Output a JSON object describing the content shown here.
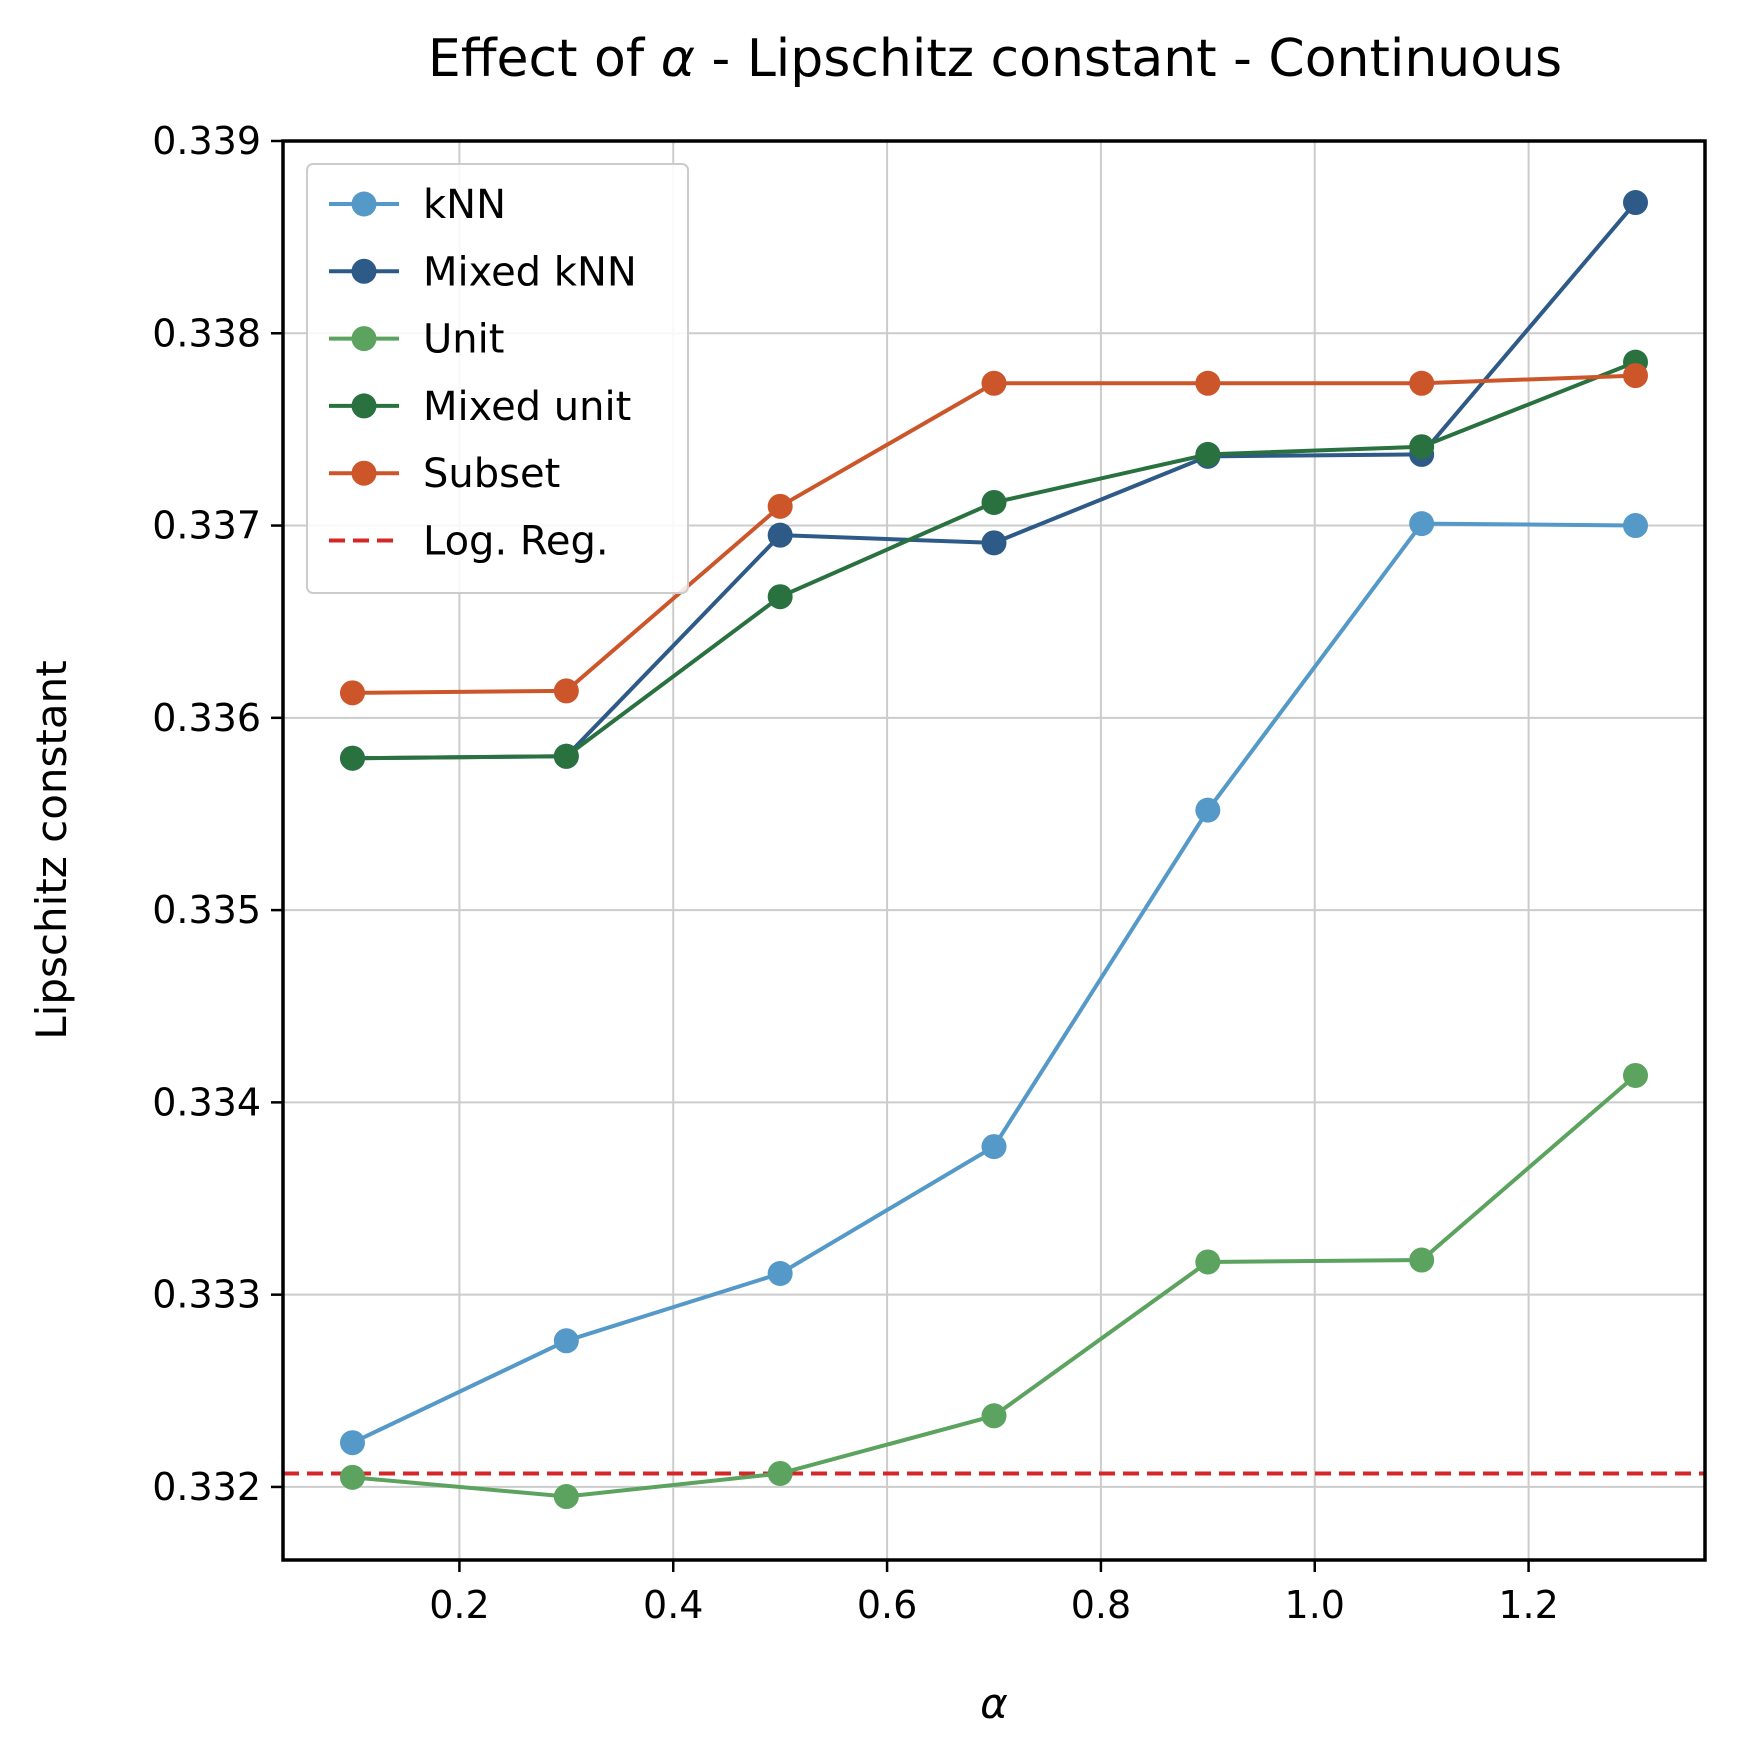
{
  "chart_data": {
    "type": "line",
    "title_prefix": "Effect of ",
    "title_symbol": "α",
    "title_suffix": " - Lipschitz constant - Continuous",
    "xlabel": "α",
    "ylabel": "Lipschitz constant",
    "xlim": [
      0.035,
      1.365
    ],
    "ylim": [
      0.33162,
      0.339
    ],
    "x_ticks": [
      0.2,
      0.4,
      0.6,
      0.8,
      1.0,
      1.2
    ],
    "x_tick_labels": [
      "0.2",
      "0.4",
      "0.6",
      "0.8",
      "1.0",
      "1.2"
    ],
    "y_ticks": [
      0.332,
      0.333,
      0.334,
      0.335,
      0.336,
      0.337,
      0.338,
      0.339
    ],
    "y_tick_labels": [
      "0.332",
      "0.333",
      "0.334",
      "0.335",
      "0.336",
      "0.337",
      "0.338",
      "0.339"
    ],
    "grid": true,
    "legend_position": "top-left",
    "x": [
      0.1,
      0.3,
      0.5,
      0.7,
      0.9,
      1.1,
      1.3
    ],
    "series": [
      {
        "name": "kNN",
        "color": "#5499c7",
        "style": "line-marker",
        "values": [
          0.33223,
          0.33276,
          0.33311,
          0.33377,
          0.33552,
          0.33701,
          0.337
        ]
      },
      {
        "name": "Mixed kNN",
        "color": "#2e5a87",
        "style": "line-marker",
        "values": [
          0.33579,
          0.3358,
          0.33695,
          0.33691,
          0.33736,
          0.33737,
          0.33868
        ]
      },
      {
        "name": "Unit",
        "color": "#5ba35e",
        "style": "line-marker",
        "values": [
          0.33205,
          0.33195,
          0.33207,
          0.33237,
          0.33317,
          0.33318,
          0.33414
        ]
      },
      {
        "name": "Mixed unit",
        "color": "#2a7140",
        "style": "line-marker",
        "values": [
          0.33579,
          0.3358,
          0.33663,
          0.33712,
          0.33737,
          0.33741,
          0.33785
        ]
      },
      {
        "name": "Subset",
        "color": "#cc5629",
        "style": "line-marker",
        "values": [
          0.33613,
          0.33614,
          0.3371,
          0.33774,
          0.33774,
          0.33774,
          0.33778
        ]
      }
    ],
    "reference": {
      "name": "Log. Reg.",
      "color": "#d62728",
      "style": "dashed",
      "value": 0.33207
    }
  }
}
